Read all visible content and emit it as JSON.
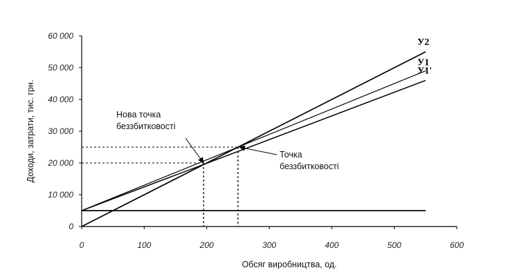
{
  "chart_data": {
    "type": "line",
    "title": "",
    "xlabel": "Обсяг виробництва, од.",
    "ylabel": "Доходи, затрати, тис. грн.",
    "xlim": [
      0,
      600
    ],
    "ylim": [
      0,
      60000
    ],
    "x_ticks": [
      0,
      100,
      200,
      300,
      400,
      500,
      600
    ],
    "y_ticks": [
      0,
      10000,
      20000,
      30000,
      40000,
      50000,
      60000
    ],
    "x_tick_labels": [
      "0",
      "100",
      "200",
      "300",
      "400",
      "500",
      "600"
    ],
    "y_tick_labels": [
      "0",
      "10 000",
      "20 000",
      "30 000",
      "40 000",
      "50 000",
      "60 000"
    ],
    "grid": false,
    "series": [
      {
        "name": "У2",
        "x": [
          0,
          550
        ],
        "y": [
          0,
          55000
        ]
      },
      {
        "name": "У1",
        "x": [
          0,
          550
        ],
        "y": [
          5000,
          49000
        ]
      },
      {
        "name": "У1'",
        "x": [
          0,
          550
        ],
        "y": [
          5000,
          46000
        ]
      },
      {
        "name": "",
        "x": [
          0,
          550
        ],
        "y": [
          5000,
          5000
        ]
      }
    ],
    "reference_points": [
      {
        "x": 250,
        "y": 25000
      },
      {
        "x": 195,
        "y": 20000
      }
    ],
    "annotations": [
      {
        "lines": [
          "Нова точка",
          "беззбитковості"
        ],
        "target": {
          "x": 195,
          "y": 20000
        }
      },
      {
        "lines": [
          "Точка",
          "беззбитковості"
        ],
        "target": {
          "x": 250,
          "y": 25000
        }
      }
    ]
  }
}
